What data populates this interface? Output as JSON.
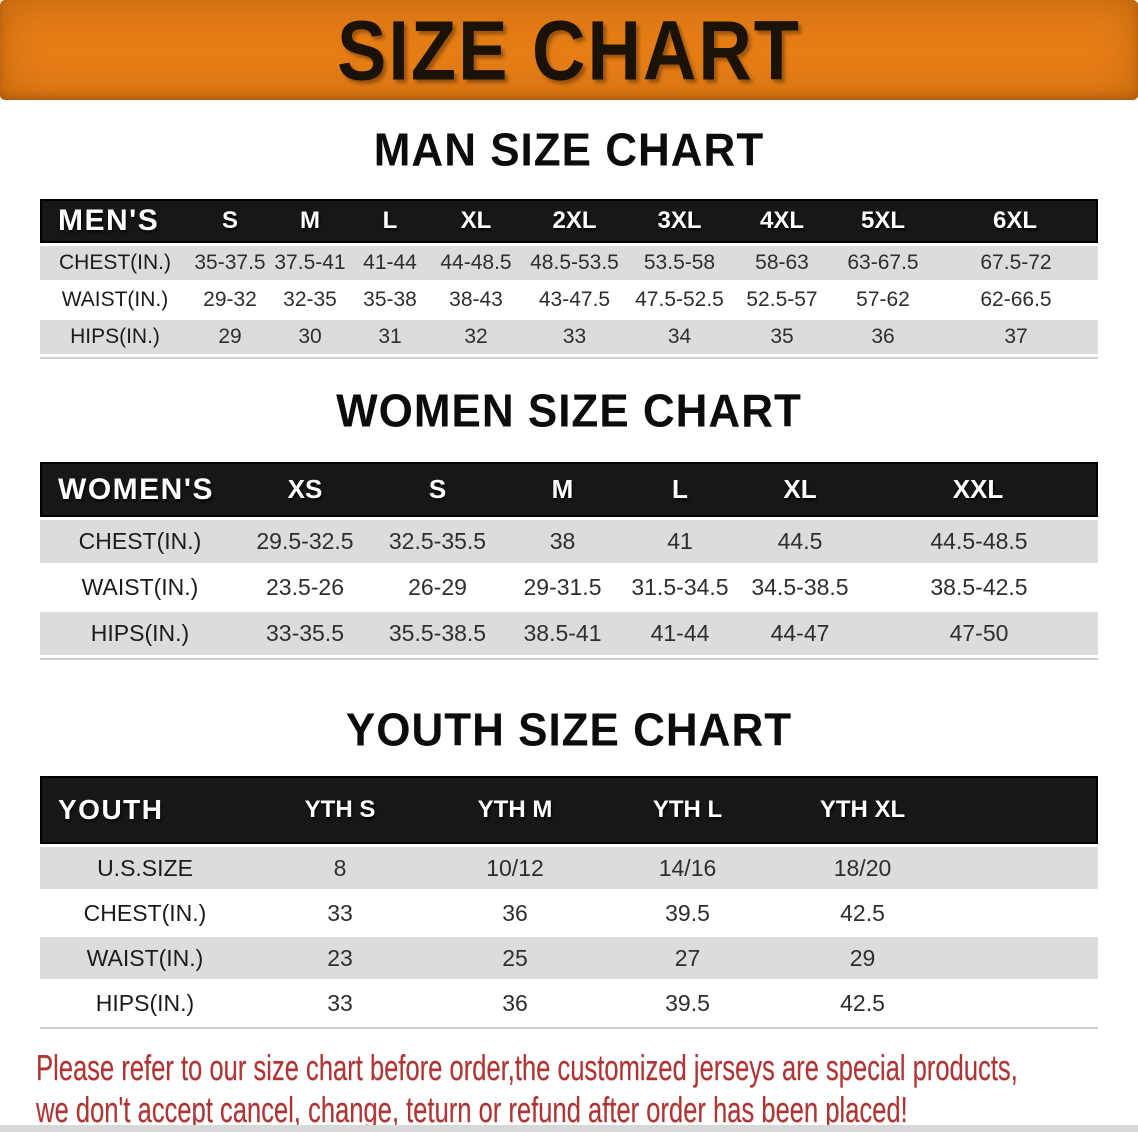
{
  "banner": {
    "title": "SIZE CHART",
    "background_color": "#E67E16",
    "text_color": "#1A1206"
  },
  "sections": [
    {
      "id": "men",
      "heading": "MAN SIZE CHART",
      "corner_label": "MEN'S",
      "columns": [
        "S",
        "M",
        "L",
        "XL",
        "2XL",
        "3XL",
        "4XL",
        "5XL",
        "6XL"
      ],
      "rows": [
        {
          "label": "CHEST(IN.)",
          "values": [
            "35-37.5",
            "37.5-41",
            "41-44",
            "44-48.5",
            "48.5-53.5",
            "53.5-58",
            "58-63",
            "63-67.5",
            "67.5-72"
          ]
        },
        {
          "label": "WAIST(IN.)",
          "values": [
            "29-32",
            "32-35",
            "35-38",
            "38-43",
            "43-47.5",
            "47.5-52.5",
            "52.5-57",
            "57-62",
            "62-66.5"
          ]
        },
        {
          "label": "HIPS(IN.)",
          "values": [
            "29",
            "30",
            "31",
            "32",
            "33",
            "34",
            "35",
            "36",
            "37"
          ]
        }
      ]
    },
    {
      "id": "women",
      "heading": "WOMEN SIZE CHART",
      "corner_label": "WOMEN'S",
      "columns": [
        "XS",
        "S",
        "M",
        "L",
        "XL",
        "XXL"
      ],
      "rows": [
        {
          "label": "CHEST(IN.)",
          "values": [
            "29.5-32.5",
            "32.5-35.5",
            "38",
            "41",
            "44.5",
            "44.5-48.5"
          ]
        },
        {
          "label": "WAIST(IN.)",
          "values": [
            "23.5-26",
            "26-29",
            "29-31.5",
            "31.5-34.5",
            "34.5-38.5",
            "38.5-42.5"
          ]
        },
        {
          "label": "HIPS(IN.)",
          "values": [
            "33-35.5",
            "35.5-38.5",
            "38.5-41",
            "41-44",
            "44-47",
            "47-50"
          ]
        }
      ]
    },
    {
      "id": "youth",
      "heading": "YOUTH SIZE CHART",
      "corner_label": "YOUTH",
      "columns": [
        "YTH S",
        "YTH M",
        "YTH L",
        "YTH XL"
      ],
      "rows": [
        {
          "label": "U.S.SIZE",
          "values": [
            "8",
            "10/12",
            "14/16",
            "18/20"
          ]
        },
        {
          "label": "CHEST(IN.)",
          "values": [
            "33",
            "36",
            "39.5",
            "42.5"
          ]
        },
        {
          "label": "WAIST(IN.)",
          "values": [
            "23",
            "25",
            "27",
            "29"
          ]
        },
        {
          "label": "HIPS(IN.)",
          "values": [
            "33",
            "36",
            "39.5",
            "42.5"
          ]
        }
      ]
    }
  ],
  "disclaimer": {
    "line1": "Please refer to our size chart before order,the customized jerseys are special products,",
    "line2": "we don't accept cancel, change, teturn or refund after order has been placed!",
    "text_color": "#B13434"
  },
  "colors": {
    "table_header_bg": "#171717",
    "table_row_shade": "#DCDCDC",
    "table_bottom_line": "#CFCFCF",
    "bottom_strip": "#D8D8D8"
  }
}
